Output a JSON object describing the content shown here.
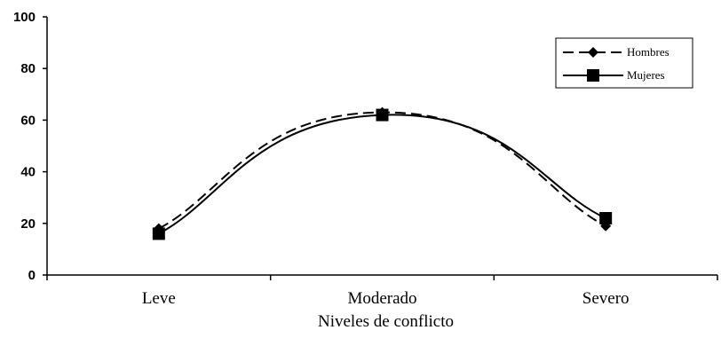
{
  "chart_data": {
    "type": "line",
    "categories": [
      "Leve",
      "Moderado",
      "Severo"
    ],
    "series": [
      {
        "name": "Hombres",
        "values": [
          18,
          63,
          19
        ],
        "style": "dashed",
        "marker": "diamond",
        "color": "#000000"
      },
      {
        "name": "Mujeres",
        "values": [
          16,
          62,
          22
        ],
        "style": "solid",
        "marker": "square",
        "color": "#000000"
      }
    ],
    "title": "",
    "xlabel": "Niveles de conflicto",
    "ylabel": "",
    "ylim": [
      0,
      100
    ],
    "yticks": [
      "0",
      "20",
      "40",
      "60",
      "80",
      "100"
    ],
    "grid": false,
    "legend": "top-right",
    "smooth": true
  }
}
